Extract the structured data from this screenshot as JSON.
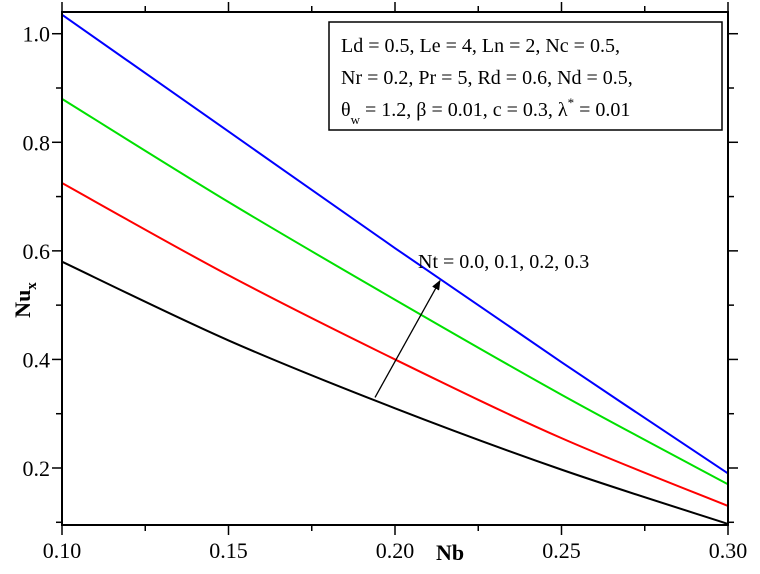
{
  "chart_data": {
    "type": "line",
    "title": "",
    "xlabel": "Nb",
    "ylabel": "Nu",
    "ylabel_subscript": "x",
    "xlim": [
      0.1,
      0.3
    ],
    "ylim": [
      0.095,
      1.04
    ],
    "xticks": [
      0.1,
      0.15,
      0.2,
      0.25,
      0.3
    ],
    "xtick_labels": [
      "0.10",
      "0.15",
      "0.20",
      "0.25",
      "0.30"
    ],
    "yticks": [
      0.2,
      0.4,
      0.6,
      0.8,
      1.0
    ],
    "ytick_labels": [
      "0.2",
      "0.4",
      "0.6",
      "0.8",
      "1.0"
    ],
    "grid": false,
    "x": [
      0.1,
      0.15,
      0.2,
      0.25,
      0.3
    ],
    "series": [
      {
        "color": "#000000",
        "values": [
          0.58,
          0.435,
          0.31,
          0.197,
          0.097
        ]
      },
      {
        "color": "#ff0000",
        "values": [
          0.725,
          0.555,
          0.4,
          0.255,
          0.13
        ]
      },
      {
        "color": "#00e000",
        "values": [
          0.88,
          0.69,
          0.51,
          0.335,
          0.17
        ]
      },
      {
        "color": "#0000ff",
        "values": [
          1.035,
          0.82,
          0.605,
          0.395,
          0.19
        ]
      }
    ],
    "legend_box": {
      "lines": [
        "Ld = 0.5, Le = 4, Ln = 2, Nc = 0.5,",
        "Nr = 0.2, Pr = 5, Rd = 0.6, Nd = 0.5,"
      ],
      "line3": {
        "theta": "θ",
        "theta_sub": "w",
        "part1": " = 1.2, β = 0.01, c = 0.3, λ",
        "lambda_sup": "*",
        "part2": " = 0.01"
      },
      "placement": "top-right"
    },
    "annotation": {
      "text": "Nt = 0.0, 0.1, 0.2, 0.3",
      "arrow_from": [
        0.194,
        0.33
      ],
      "arrow_to": [
        0.2135,
        0.545
      ]
    }
  }
}
